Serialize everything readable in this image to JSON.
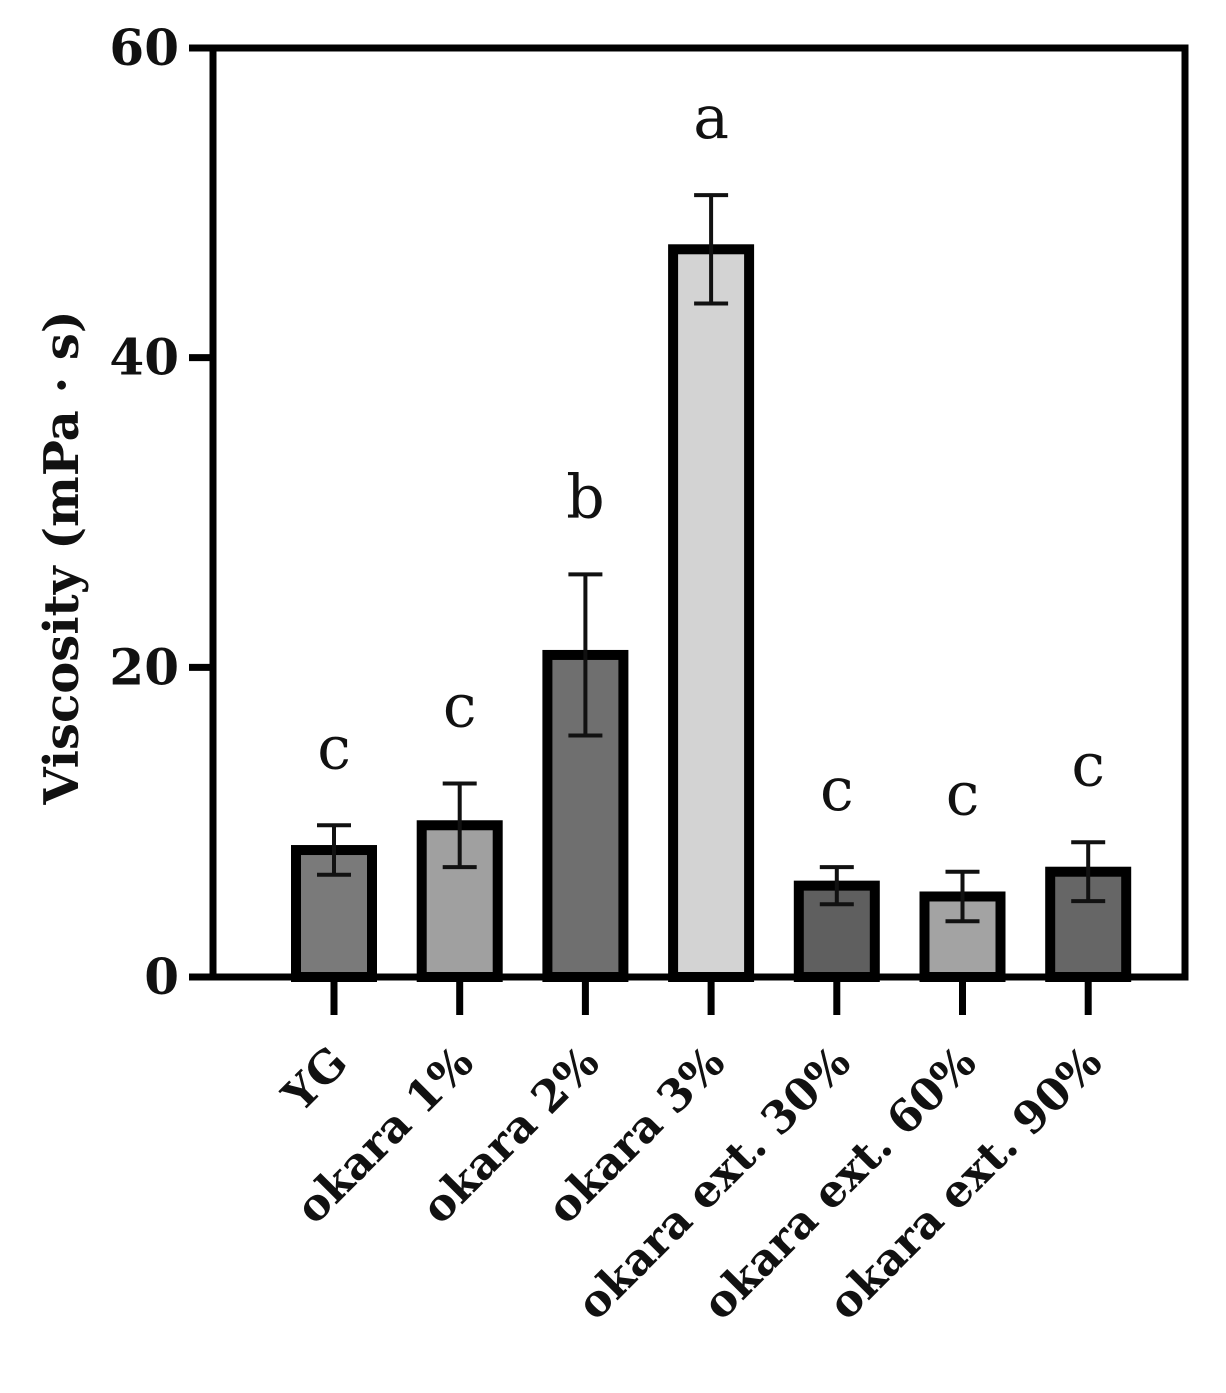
{
  "chart_data": {
    "type": "bar",
    "title": "",
    "xlabel": "",
    "ylabel": "Viscosity (mPa · s)",
    "ylim": [
      0,
      60
    ],
    "yticks": [
      "0",
      "20",
      "40",
      "60"
    ],
    "ytick_values": [
      0,
      20,
      40,
      60
    ],
    "categories": [
      "YG",
      "okara 1%",
      "okara 2%",
      "okara 3%",
      "okara ext. 30%",
      "okara ext. 60%",
      "okara ext. 90%"
    ],
    "values": [
      8.2,
      9.8,
      20.8,
      47.0,
      5.9,
      5.2,
      6.8
    ],
    "errors": [
      1.6,
      2.7,
      5.2,
      3.5,
      1.2,
      1.6,
      1.9
    ],
    "significance": [
      "c",
      "c",
      "b",
      "a",
      "c",
      "c",
      "c"
    ],
    "colors": [
      "#7a7a7a",
      "#a0a0a0",
      "#6f6f6f",
      "#d3d3d3",
      "#5f5f5f",
      "#a3a3a3",
      "#666666"
    ],
    "grid": false,
    "legend": "none"
  }
}
